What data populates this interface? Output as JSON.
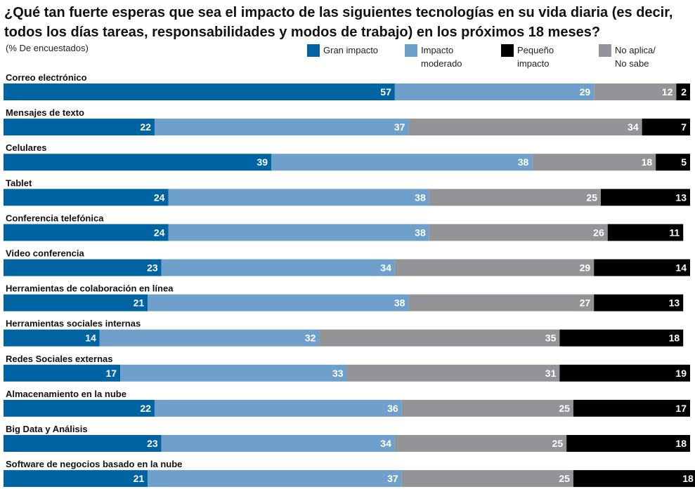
{
  "chart_data": {
    "type": "bar",
    "orientation": "horizontal",
    "stacked": true,
    "title": "¿Qué tan fuerte esperas que sea el impacto de las siguientes tecnologías en su vida diaria (es decir, todos los días tareas, responsabilidades y modos de trabajo) en los próximos 18 meses?",
    "subtitle": "(% De encuestados)",
    "legend_position": "top-right",
    "grid": false,
    "xlim": [
      0,
      100
    ],
    "categories": [
      "Correo electrónico",
      "Mensajes de texto",
      "Celulares",
      "Tablet",
      "Conferencia telefónica",
      "Video conferencia",
      "Herramientas de colaboración en línea",
      "Herramientas sociales internas",
      "Redes Sociales externas",
      "Almacenamiento en la nube",
      "Big Data y Análisis",
      "Software de negocios basado en la nube"
    ],
    "series": [
      {
        "name": "Gran impacto",
        "name_lines": [
          "Gran impacto"
        ],
        "color": "#0063a2",
        "values": [
          57,
          22,
          39,
          24,
          24,
          23,
          21,
          14,
          17,
          22,
          23,
          21
        ]
      },
      {
        "name": "Impacto moderado",
        "name_lines": [
          "Impacto",
          "moderado"
        ],
        "color": "#6fa0cc",
        "values": [
          29,
          37,
          38,
          38,
          38,
          34,
          38,
          32,
          33,
          36,
          34,
          37
        ]
      },
      {
        "name": "No aplica/ No sabe",
        "name_lines": [
          "No aplica/",
          "No sabe"
        ],
        "color": "#939498",
        "values": [
          12,
          34,
          18,
          25,
          26,
          29,
          27,
          35,
          31,
          25,
          25,
          25
        ]
      },
      {
        "name": "Pequeño impacto",
        "name_lines": [
          "Pequeño",
          "impacto"
        ],
        "color": "#000000",
        "values": [
          2,
          7,
          5,
          13,
          11,
          14,
          13,
          18,
          19,
          17,
          18,
          18
        ]
      }
    ],
    "legend_order": [
      0,
      1,
      3,
      2
    ]
  }
}
